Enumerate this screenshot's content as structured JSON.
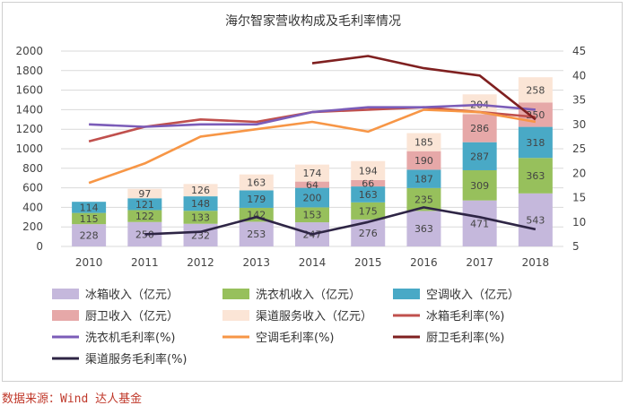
{
  "chart_data": {
    "type": "bar",
    "title": "海尔智家营收构成及毛利率情况",
    "categories": [
      "2010",
      "2011",
      "2012",
      "2013",
      "2014",
      "2015",
      "2016",
      "2017",
      "2018"
    ],
    "ylim": [
      0,
      2000
    ],
    "y_ticks": [
      "0",
      "200",
      "400",
      "600",
      "800",
      "1000",
      "1200",
      "1400",
      "1600",
      "1800",
      "2000"
    ],
    "y2lim": [
      5,
      45
    ],
    "y2_ticks": [
      "5",
      "10",
      "15",
      "20",
      "25",
      "30",
      "35",
      "40",
      "45"
    ],
    "grid": true,
    "stacked": true,
    "bar_series": [
      {
        "name": "冰箱收入（亿元）",
        "color": "#c5b8dc",
        "label_color": "#444444",
        "values": [
          228,
          250,
          232,
          253,
          247,
          276,
          363,
          471,
          543
        ],
        "labels": [
          "228",
          "250",
          "232",
          "253",
          "247",
          "276",
          "363",
          "471",
          "543"
        ]
      },
      {
        "name": "洗衣机收入（亿元）",
        "color": "#97c05c",
        "label_color": "#444444",
        "values": [
          115,
          122,
          133,
          142,
          153,
          175,
          235,
          309,
          363
        ],
        "labels": [
          "115",
          "122",
          "133",
          "142",
          "153",
          "175",
          "235",
          "309",
          "363"
        ]
      },
      {
        "name": "空调收入（亿元）",
        "color": "#49a9c6",
        "label_color": "#444444",
        "values": [
          114,
          121,
          148,
          179,
          200,
          163,
          187,
          287,
          318
        ],
        "labels": [
          "114",
          "121",
          "148",
          "179",
          "200",
          "163",
          "187",
          "287",
          "318"
        ]
      },
      {
        "name": "厨卫收入（亿元）",
        "color": "#e6a8a8",
        "label_color": "#444444",
        "values": [
          null,
          null,
          null,
          null,
          64,
          66,
          190,
          286,
          250
        ],
        "labels": [
          "",
          "",
          "",
          "",
          "64",
          "66",
          "190",
          "286",
          "250"
        ]
      },
      {
        "name": "渠道服务收入（亿元）",
        "color": "#fbe5d6",
        "label_color": "#444444",
        "values": [
          null,
          97,
          126,
          163,
          174,
          194,
          185,
          204,
          258
        ],
        "labels": [
          "",
          "97",
          "126",
          "163",
          "174",
          "194",
          "185",
          "204",
          "258"
        ]
      }
    ],
    "line_series": [
      {
        "name": "冰箱毛利率(%)",
        "color": "#c0504d",
        "values": [
          26.5,
          29.5,
          31,
          30.5,
          32.5,
          33,
          33.5,
          32.5,
          31.5
        ]
      },
      {
        "name": "洗衣机毛利率(%)",
        "color": "#7b5cb8",
        "values": [
          30,
          29.5,
          30,
          30,
          32.5,
          33.5,
          33.5,
          34,
          33
        ]
      },
      {
        "name": "空调毛利率(%)",
        "color": "#f79646",
        "values": [
          18,
          22,
          27.5,
          29,
          30.5,
          28.5,
          33,
          32.5,
          30.5
        ]
      },
      {
        "name": "厨卫毛利率(%)",
        "color": "#7f2020",
        "values": [
          null,
          null,
          null,
          null,
          42.5,
          44,
          41.5,
          40,
          31
        ]
      },
      {
        "name": "渠道服务毛利率(%)",
        "color": "#2e2545",
        "values": [
          null,
          7.5,
          8,
          11,
          7.5,
          10,
          13,
          11,
          8.5
        ]
      }
    ],
    "legend": [
      {
        "label": "冰箱收入（亿元）",
        "kind": "bar",
        "color": "#c5b8dc"
      },
      {
        "label": "洗衣机收入（亿元）",
        "kind": "bar",
        "color": "#97c05c"
      },
      {
        "label": "空调收入（亿元）",
        "kind": "bar",
        "color": "#49a9c6"
      },
      {
        "label": "厨卫收入（亿元）",
        "kind": "bar",
        "color": "#e6a8a8"
      },
      {
        "label": "渠道服务收入（亿元）",
        "kind": "bar",
        "color": "#fbe5d6"
      },
      {
        "label": "冰箱毛利率(%)",
        "kind": "line",
        "color": "#c0504d"
      },
      {
        "label": "洗衣机毛利率(%)",
        "kind": "line",
        "color": "#7b5cb8"
      },
      {
        "label": "空调毛利率(%)",
        "kind": "line",
        "color": "#f79646"
      },
      {
        "label": "厨卫毛利率(%)",
        "kind": "line",
        "color": "#7f2020"
      },
      {
        "label": "渠道服务毛利率(%)",
        "kind": "line",
        "color": "#2e2545"
      }
    ]
  },
  "source_text": "数据来源：Wind 达人基金"
}
